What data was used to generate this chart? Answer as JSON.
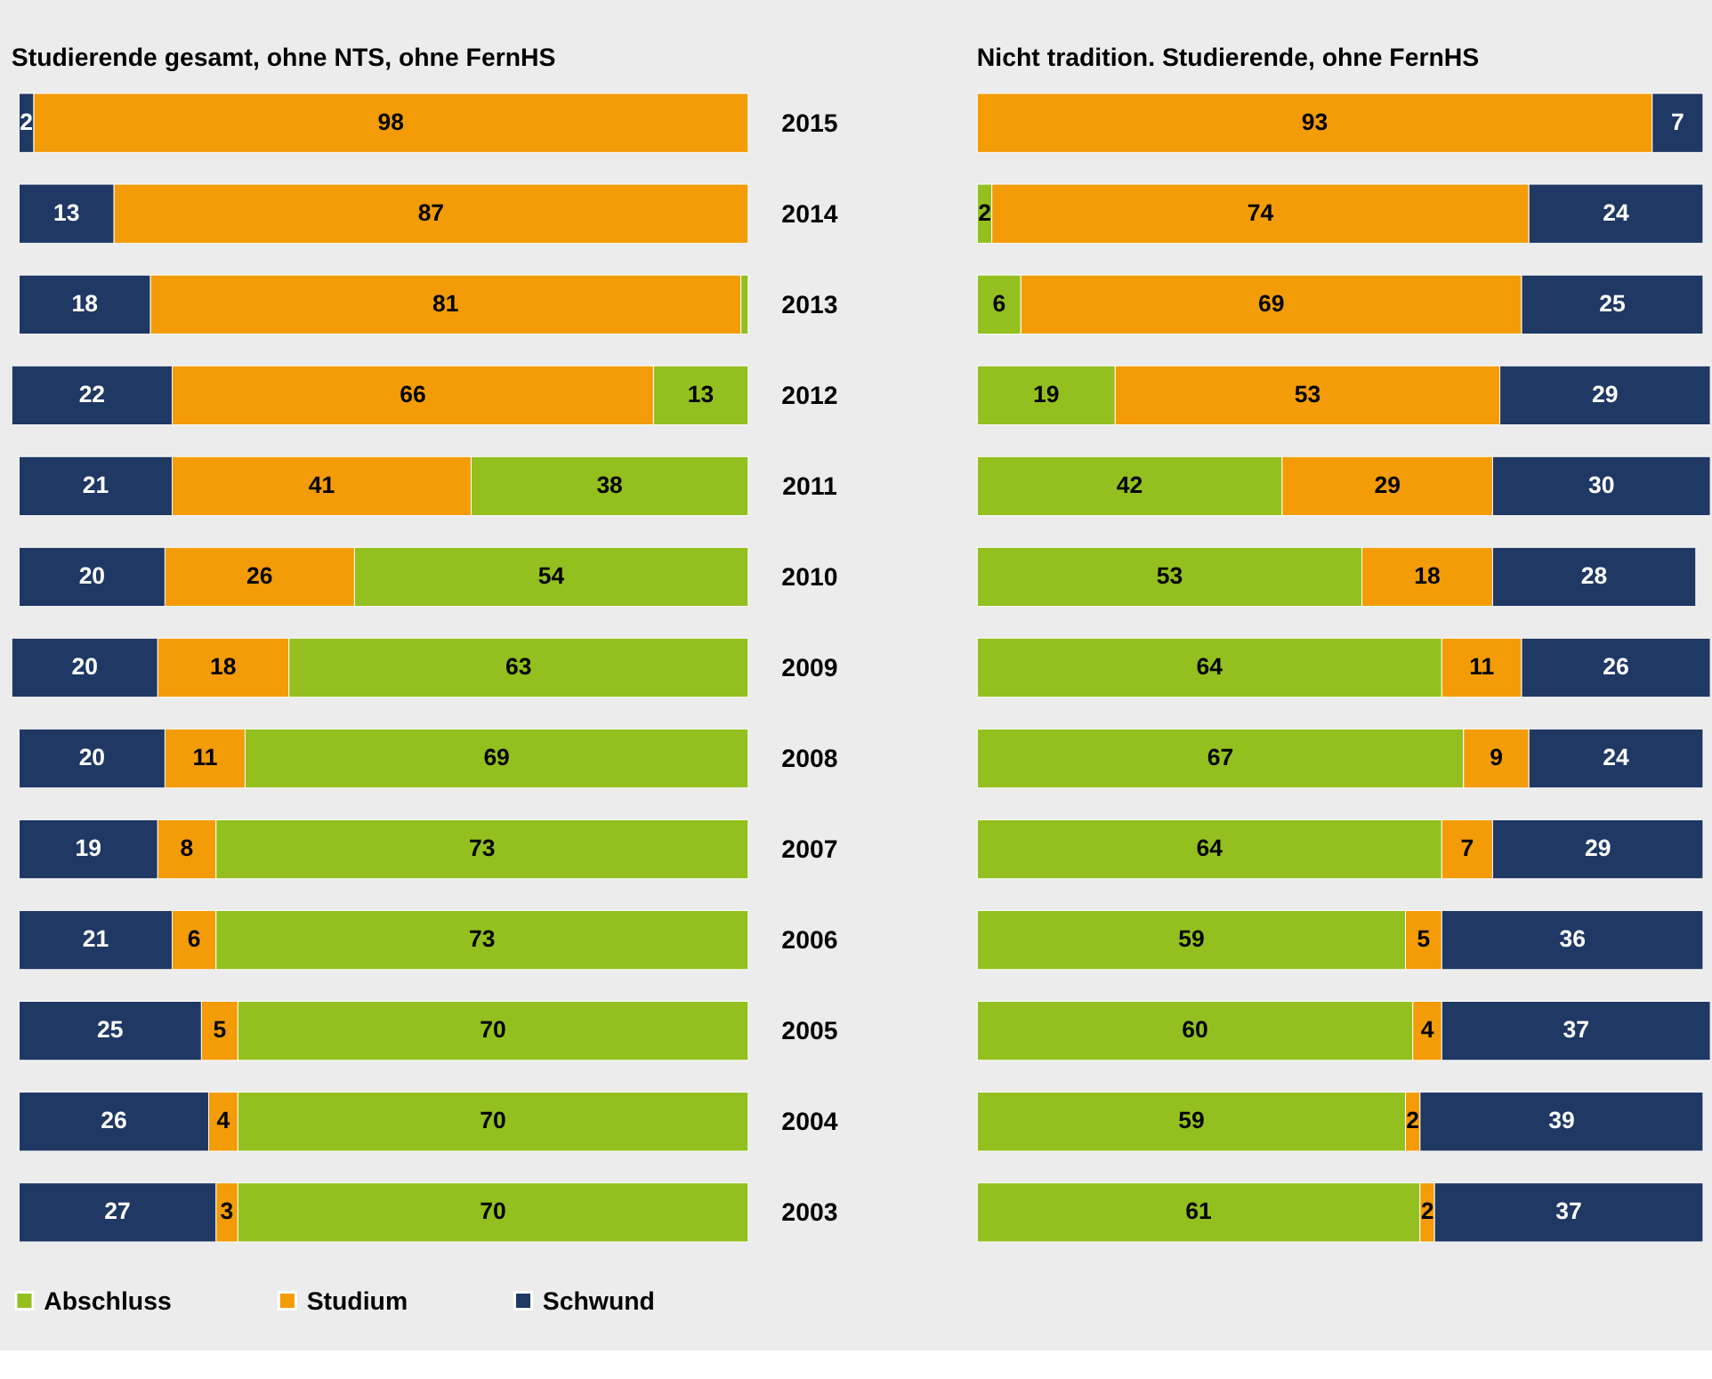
{
  "chart_data": [
    {
      "type": "bar",
      "orientation": "horizontal",
      "stacked": true,
      "title": "Studierende gesamt, ohne NTS, ohne FernHS",
      "categories": [
        "2015",
        "2014",
        "2013",
        "2012",
        "2011",
        "2010",
        "2009",
        "2008",
        "2007",
        "2006",
        "2005",
        "2004",
        "2003"
      ],
      "xlim": [
        101,
        0
      ],
      "tick_labels": "y",
      "legend": "bottom",
      "series": [
        {
          "name": "Abschluss",
          "color": "#93c01f",
          "values": [
            null,
            null,
            1,
            13,
            38,
            54,
            63,
            69,
            73,
            73,
            70,
            70,
            70
          ],
          "value_labels": [
            null,
            null,
            null,
            "13",
            "38",
            "54",
            "63",
            "69",
            "73",
            "73",
            "70",
            "70",
            "70"
          ]
        },
        {
          "name": "Studium",
          "color": "#f39c07",
          "values": [
            98,
            87,
            81,
            66,
            41,
            26,
            18,
            11,
            8,
            6,
            5,
            4,
            3
          ],
          "value_labels": [
            "98",
            "87",
            "81",
            "66",
            "41",
            "26",
            "18",
            "11",
            "8",
            "6",
            "5",
            "4",
            "3"
          ]
        },
        {
          "name": "Schwund",
          "color": "#1f3864",
          "values": [
            2,
            13,
            18,
            22,
            21,
            20,
            20,
            20,
            19,
            21,
            25,
            26,
            27
          ],
          "value_labels": [
            "2",
            "13",
            "18",
            "22",
            "21",
            "20",
            "20",
            "20",
            "19",
            "21",
            "25",
            "26",
            "27"
          ]
        }
      ]
    },
    {
      "type": "bar",
      "orientation": "horizontal",
      "stacked": true,
      "title": "Nicht tradition. Studierende, ohne FernHS",
      "categories": [
        "2015",
        "2014",
        "2013",
        "2012",
        "2011",
        "2010",
        "2009",
        "2008",
        "2007",
        "2006",
        "2005",
        "2004",
        "2003"
      ],
      "xlim": [
        0,
        101
      ],
      "tick_labels": false,
      "legend": "bottom",
      "series": [
        {
          "name": "Abschluss",
          "color": "#93c01f",
          "values": [
            null,
            2,
            6,
            19,
            42,
            53,
            64,
            67,
            64,
            59,
            60,
            59,
            61
          ],
          "value_labels": [
            null,
            "2",
            "6",
            "19",
            "42",
            "53",
            "64",
            "67",
            "64",
            "59",
            "60",
            "59",
            "61"
          ]
        },
        {
          "name": "Studium",
          "color": "#f39c07",
          "values": [
            93,
            74,
            69,
            53,
            29,
            18,
            11,
            9,
            7,
            5,
            4,
            2,
            2
          ],
          "value_labels": [
            "93",
            "74",
            "69",
            "53",
            "29",
            "18",
            "11",
            "9",
            "7",
            "5",
            "4",
            "2",
            "2"
          ]
        },
        {
          "name": "Schwund",
          "color": "#1f3864",
          "values": [
            7,
            24,
            25,
            29,
            30,
            28,
            26,
            24,
            29,
            36,
            37,
            39,
            37
          ],
          "value_labels": [
            "7",
            "24",
            "25",
            "29",
            "30",
            "28",
            "26",
            "24",
            "29",
            "36",
            "37",
            "39",
            "37"
          ]
        }
      ]
    }
  ]
}
